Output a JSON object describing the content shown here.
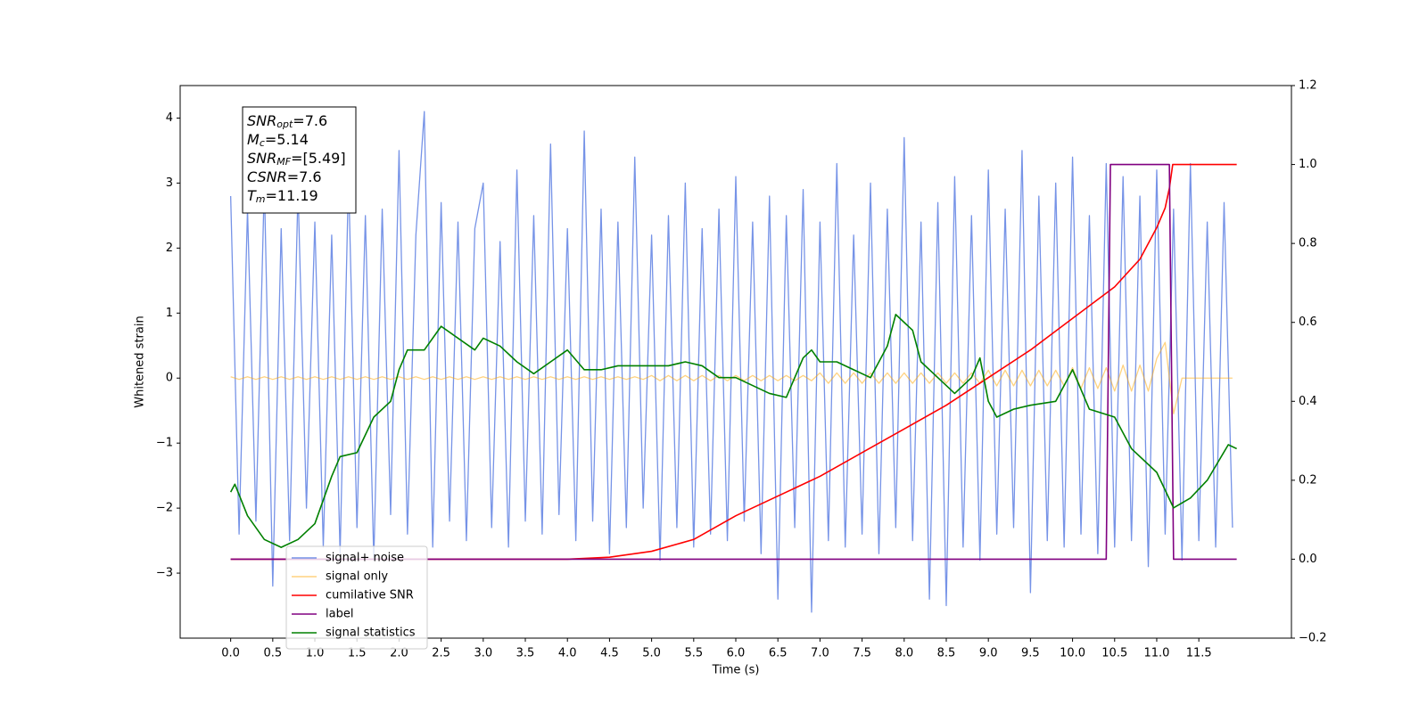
{
  "chart_data": {
    "type": "line",
    "xlabel": "Time (s)",
    "ylabel": "Whitened strain",
    "annotations": [
      {
        "base": "SNR",
        "sub": "opt",
        "text": "=7.6"
      },
      {
        "base": "M",
        "sub": "c",
        "text": "=5.14"
      },
      {
        "base": "SNR",
        "sub": "MF",
        "text": "=[5.49]"
      },
      {
        "base": "CSNR",
        "sub": null,
        "text": "=7.6"
      },
      {
        "base": "T",
        "sub": "m",
        "text": "=11.19"
      }
    ],
    "xlim": [
      -0.6,
      12.6
    ],
    "ylim": [
      -4.0,
      4.5
    ],
    "y2lim": [
      -0.2,
      1.2
    ],
    "xticks": [
      {
        "value": 0,
        "label": "0.0"
      },
      {
        "value": 0.5,
        "label": "0.5"
      },
      {
        "value": 1,
        "label": "1.0"
      },
      {
        "value": 1.5,
        "label": "1.5"
      },
      {
        "value": 2,
        "label": "2.0"
      },
      {
        "value": 2.5,
        "label": "2.5"
      },
      {
        "value": 3,
        "label": "3.0"
      },
      {
        "value": 3.5,
        "label": "3.5"
      },
      {
        "value": 4,
        "label": "4.0"
      },
      {
        "value": 4.5,
        "label": "4.5"
      },
      {
        "value": 5,
        "label": "5.0"
      },
      {
        "value": 5.5,
        "label": "5.5"
      },
      {
        "value": 6,
        "label": "6.0"
      },
      {
        "value": 6.5,
        "label": "6.5"
      },
      {
        "value": 7,
        "label": "7.0"
      },
      {
        "value": 7.5,
        "label": "7.5"
      },
      {
        "value": 8,
        "label": "8.0"
      },
      {
        "value": 8.5,
        "label": "8.5"
      },
      {
        "value": 9,
        "label": "9.0"
      },
      {
        "value": 9.5,
        "label": "9.5"
      },
      {
        "value": 10,
        "label": "10.0"
      },
      {
        "value": 10.5,
        "label": "10.5"
      },
      {
        "value": 11,
        "label": "11.0"
      },
      {
        "value": 11.5,
        "label": "11.5"
      }
    ],
    "yticks": [
      {
        "value": -3,
        "label": "−3"
      },
      {
        "value": -2,
        "label": "−2"
      },
      {
        "value": -1,
        "label": "−1"
      },
      0,
      1,
      2,
      3,
      4
    ],
    "y2ticks": [
      {
        "value": -0.2,
        "label": "−0.2"
      },
      {
        "value": 0,
        "label": "0.0"
      },
      {
        "value": 0.2,
        "label": "0.2"
      },
      {
        "value": 0.4,
        "label": "0.4"
      },
      {
        "value": 0.6,
        "label": "0.6"
      },
      {
        "value": 0.8,
        "label": "0.8"
      },
      {
        "value": 1,
        "label": "1.0"
      },
      {
        "value": 1.2,
        "label": "1.2"
      }
    ],
    "legend": "lower left",
    "x": [
      0,
      0.1,
      0.2,
      0.3,
      0.4,
      0.5,
      0.6,
      0.7,
      0.8,
      0.9,
      1,
      1.1,
      1.2,
      1.3,
      1.4,
      1.5,
      1.6,
      1.7,
      1.8,
      1.9,
      2,
      2.1,
      2.2,
      2.3,
      2.4,
      2.5,
      2.6,
      2.7,
      2.8,
      2.9,
      3,
      3.1,
      3.2,
      3.3,
      3.4,
      3.5,
      3.6,
      3.7,
      3.8,
      3.9,
      4,
      4.1,
      4.2,
      4.3,
      4.4,
      4.5,
      4.6,
      4.7,
      4.8,
      4.9,
      5,
      5.1,
      5.2,
      5.3,
      5.4,
      5.5,
      5.6,
      5.7,
      5.8,
      5.9,
      6,
      6.1,
      6.2,
      6.3,
      6.4,
      6.5,
      6.6,
      6.7,
      6.8,
      6.9,
      7,
      7.1,
      7.2,
      7.3,
      7.4,
      7.5,
      7.6,
      7.7,
      7.8,
      7.9,
      8,
      8.1,
      8.2,
      8.3,
      8.4,
      8.5,
      8.6,
      8.7,
      8.8,
      8.9,
      9,
      9.1,
      9.2,
      9.3,
      9.4,
      9.5,
      9.6,
      9.7,
      9.8,
      9.9,
      10,
      10.1,
      10.2,
      10.3,
      10.4,
      10.5,
      10.6,
      10.7,
      10.8,
      10.9,
      11,
      11.1,
      11.2,
      11.3,
      11.4,
      11.5,
      11.6,
      11.7,
      11.8,
      11.9
    ],
    "series": [
      {
        "name": "signal+ noise",
        "color": "#6f8de6",
        "opacity": 0.95,
        "values": [
          2.8,
          -2.4,
          2.6,
          -2.2,
          3.0,
          -3.2,
          2.3,
          -2.5,
          2.9,
          -2.0,
          2.4,
          -2.6,
          2.2,
          -2.7,
          3.1,
          -2.3,
          2.5,
          -2.8,
          2.6,
          -2.1,
          3.5,
          -2.4,
          2.2,
          4.1,
          -2.6,
          2.7,
          -2.2,
          2.4,
          -2.5,
          2.3,
          3.0,
          -2.3,
          2.1,
          -2.6,
          3.2,
          -2.2,
          2.5,
          -2.4,
          3.6,
          -2.1,
          2.3,
          -2.5,
          3.8,
          -2.2,
          2.6,
          -2.7,
          2.4,
          -2.3,
          3.4,
          -2.0,
          2.2,
          -2.8,
          2.5,
          -2.3,
          3.0,
          -2.6,
          2.3,
          -2.4,
          2.6,
          -2.5,
          3.1,
          -2.2,
          2.4,
          -2.7,
          2.8,
          -3.4,
          2.5,
          -2.3,
          2.9,
          -3.6,
          2.4,
          -2.5,
          3.3,
          -2.6,
          2.2,
          -2.4,
          3.0,
          -2.7,
          2.6,
          -2.3,
          3.7,
          -2.5,
          2.4,
          -3.4,
          2.7,
          -3.5,
          3.1,
          -2.6,
          2.5,
          -2.8,
          3.2,
          -2.4,
          2.6,
          -2.3,
          3.5,
          -3.3,
          2.8,
          -2.5,
          3.0,
          -2.6,
          3.4,
          -2.4,
          2.5,
          -2.7,
          3.3,
          -2.6,
          3.1,
          -2.5,
          2.8,
          -2.9,
          3.2,
          -2.4,
          2.6,
          -2.8,
          3.3,
          -2.5,
          2.4,
          -2.6,
          2.7,
          -2.3
        ]
      },
      {
        "name": "signal only",
        "color": "#ffa500",
        "opacity": 0.5,
        "values": [
          0.02,
          -0.02,
          0.02,
          -0.02,
          0.02,
          -0.02,
          0.02,
          -0.02,
          0.02,
          -0.02,
          0.02,
          -0.02,
          0.02,
          -0.02,
          0.02,
          -0.02,
          0.02,
          -0.02,
          0.02,
          -0.02,
          0.02,
          -0.02,
          0.02,
          -0.02,
          0.02,
          -0.02,
          0.02,
          -0.02,
          0.02,
          -0.02,
          0.02,
          -0.02,
          0.02,
          -0.02,
          0.02,
          -0.02,
          0.02,
          -0.02,
          0.02,
          -0.02,
          0.02,
          -0.02,
          0.02,
          -0.02,
          0.02,
          -0.02,
          0.02,
          -0.02,
          0.02,
          -0.02,
          0.04,
          -0.04,
          0.04,
          -0.04,
          0.04,
          -0.04,
          0.04,
          -0.04,
          0.04,
          -0.04,
          0.04,
          -0.04,
          0.04,
          -0.04,
          0.04,
          -0.04,
          0.04,
          -0.04,
          0.04,
          -0.04,
          0.08,
          -0.08,
          0.08,
          -0.08,
          0.08,
          -0.08,
          0.08,
          -0.08,
          0.08,
          -0.08,
          0.08,
          -0.08,
          0.08,
          -0.08,
          0.08,
          -0.08,
          0.08,
          -0.08,
          0.08,
          -0.08,
          0.12,
          -0.12,
          0.12,
          -0.12,
          0.12,
          -0.12,
          0.12,
          -0.12,
          0.12,
          -0.12,
          0.16,
          -0.16,
          0.16,
          -0.16,
          0.16,
          -0.2,
          0.2,
          -0.2,
          0.2,
          -0.2,
          0.3,
          0.55,
          -0.55,
          0,
          0,
          0,
          0,
          0,
          0,
          0
        ]
      },
      {
        "name": "cumilative SNR",
        "color": "#ff0000",
        "axis": "y2",
        "x": [
          0,
          4,
          4.5,
          5,
          5.5,
          6,
          6.5,
          7,
          7.5,
          8,
          8.5,
          9,
          9.5,
          10,
          10.5,
          10.8,
          11,
          11.1,
          11.15,
          11.19,
          11.5,
          11.95
        ],
        "values": [
          0,
          0,
          0.005,
          0.02,
          0.05,
          0.11,
          0.16,
          0.21,
          0.27,
          0.33,
          0.39,
          0.46,
          0.53,
          0.61,
          0.69,
          0.76,
          0.84,
          0.89,
          0.94,
          1.0,
          1.0,
          1.0
        ]
      },
      {
        "name": "label",
        "color": "#800080",
        "axis": "y2",
        "x": [
          0,
          10.4,
          10.45,
          11.15,
          11.2,
          11.95
        ],
        "values": [
          0,
          0,
          1,
          1,
          0,
          0
        ]
      },
      {
        "name": "signal statistics",
        "color": "#008000",
        "axis": "y2",
        "x": [
          0,
          0.05,
          0.2,
          0.4,
          0.6,
          0.8,
          1,
          1.2,
          1.3,
          1.5,
          1.7,
          1.9,
          2,
          2.1,
          2.3,
          2.5,
          2.7,
          2.9,
          3,
          3.2,
          3.4,
          3.6,
          3.8,
          4,
          4.2,
          4.4,
          4.6,
          4.8,
          5,
          5.2,
          5.4,
          5.6,
          5.8,
          6,
          6.2,
          6.4,
          6.6,
          6.8,
          6.9,
          7,
          7.2,
          7.4,
          7.6,
          7.8,
          7.9,
          8.1,
          8.2,
          8.4,
          8.6,
          8.8,
          8.9,
          9,
          9.1,
          9.3,
          9.5,
          9.8,
          10,
          10.2,
          10.5,
          10.7,
          11,
          11.2,
          11.4,
          11.6,
          11.85,
          11.95
        ],
        "values": [
          0.17,
          0.19,
          0.11,
          0.05,
          0.03,
          0.05,
          0.09,
          0.21,
          0.26,
          0.27,
          0.36,
          0.4,
          0.48,
          0.53,
          0.53,
          0.59,
          0.56,
          0.53,
          0.56,
          0.54,
          0.5,
          0.47,
          0.5,
          0.53,
          0.48,
          0.48,
          0.49,
          0.49,
          0.49,
          0.49,
          0.5,
          0.49,
          0.46,
          0.46,
          0.44,
          0.42,
          0.41,
          0.51,
          0.53,
          0.5,
          0.5,
          0.48,
          0.46,
          0.54,
          0.62,
          0.58,
          0.5,
          0.46,
          0.42,
          0.46,
          0.51,
          0.4,
          0.36,
          0.38,
          0.39,
          0.4,
          0.48,
          0.38,
          0.36,
          0.28,
          0.22,
          0.13,
          0.155,
          0.2,
          0.29,
          0.28
        ]
      }
    ]
  }
}
